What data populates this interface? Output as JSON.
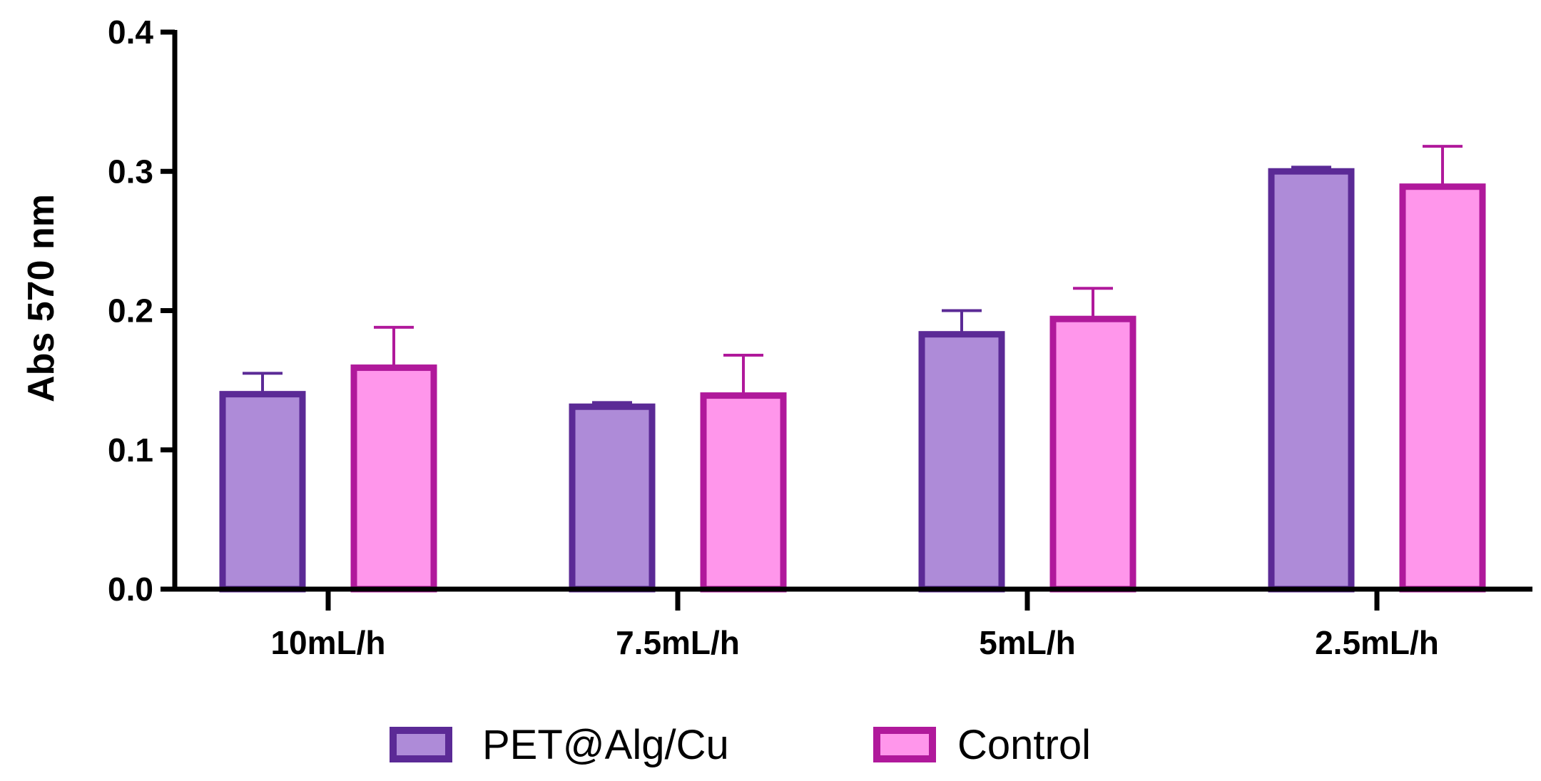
{
  "chart_data": {
    "type": "bar",
    "title": "",
    "xlabel": "",
    "ylabel": "Abs 570 nm",
    "ylim": [
      0,
      0.4
    ],
    "yticks": [
      0.0,
      0.1,
      0.2,
      0.3,
      0.4
    ],
    "ytick_labels": [
      "0.0",
      "0.1",
      "0.2",
      "0.3",
      "0.4"
    ],
    "categories": [
      "10mL/h",
      "7.5mL/h",
      "5mL/h",
      "2.5mL/h"
    ],
    "series": [
      {
        "name": "PET@Alg/Cu",
        "values": [
          0.14,
          0.131,
          0.183,
          0.3
        ],
        "errors": [
          0.015,
          0.003,
          0.017,
          0.003
        ],
        "fill": "#AE8BD8",
        "stroke": "#5B2A96"
      },
      {
        "name": "Control",
        "values": [
          0.159,
          0.139,
          0.194,
          0.289
        ],
        "errors": [
          0.029,
          0.029,
          0.022,
          0.029
        ],
        "fill": "#FF96EB",
        "stroke": "#B0199B"
      }
    ],
    "grid": false,
    "legend_position": "bottom-center"
  }
}
